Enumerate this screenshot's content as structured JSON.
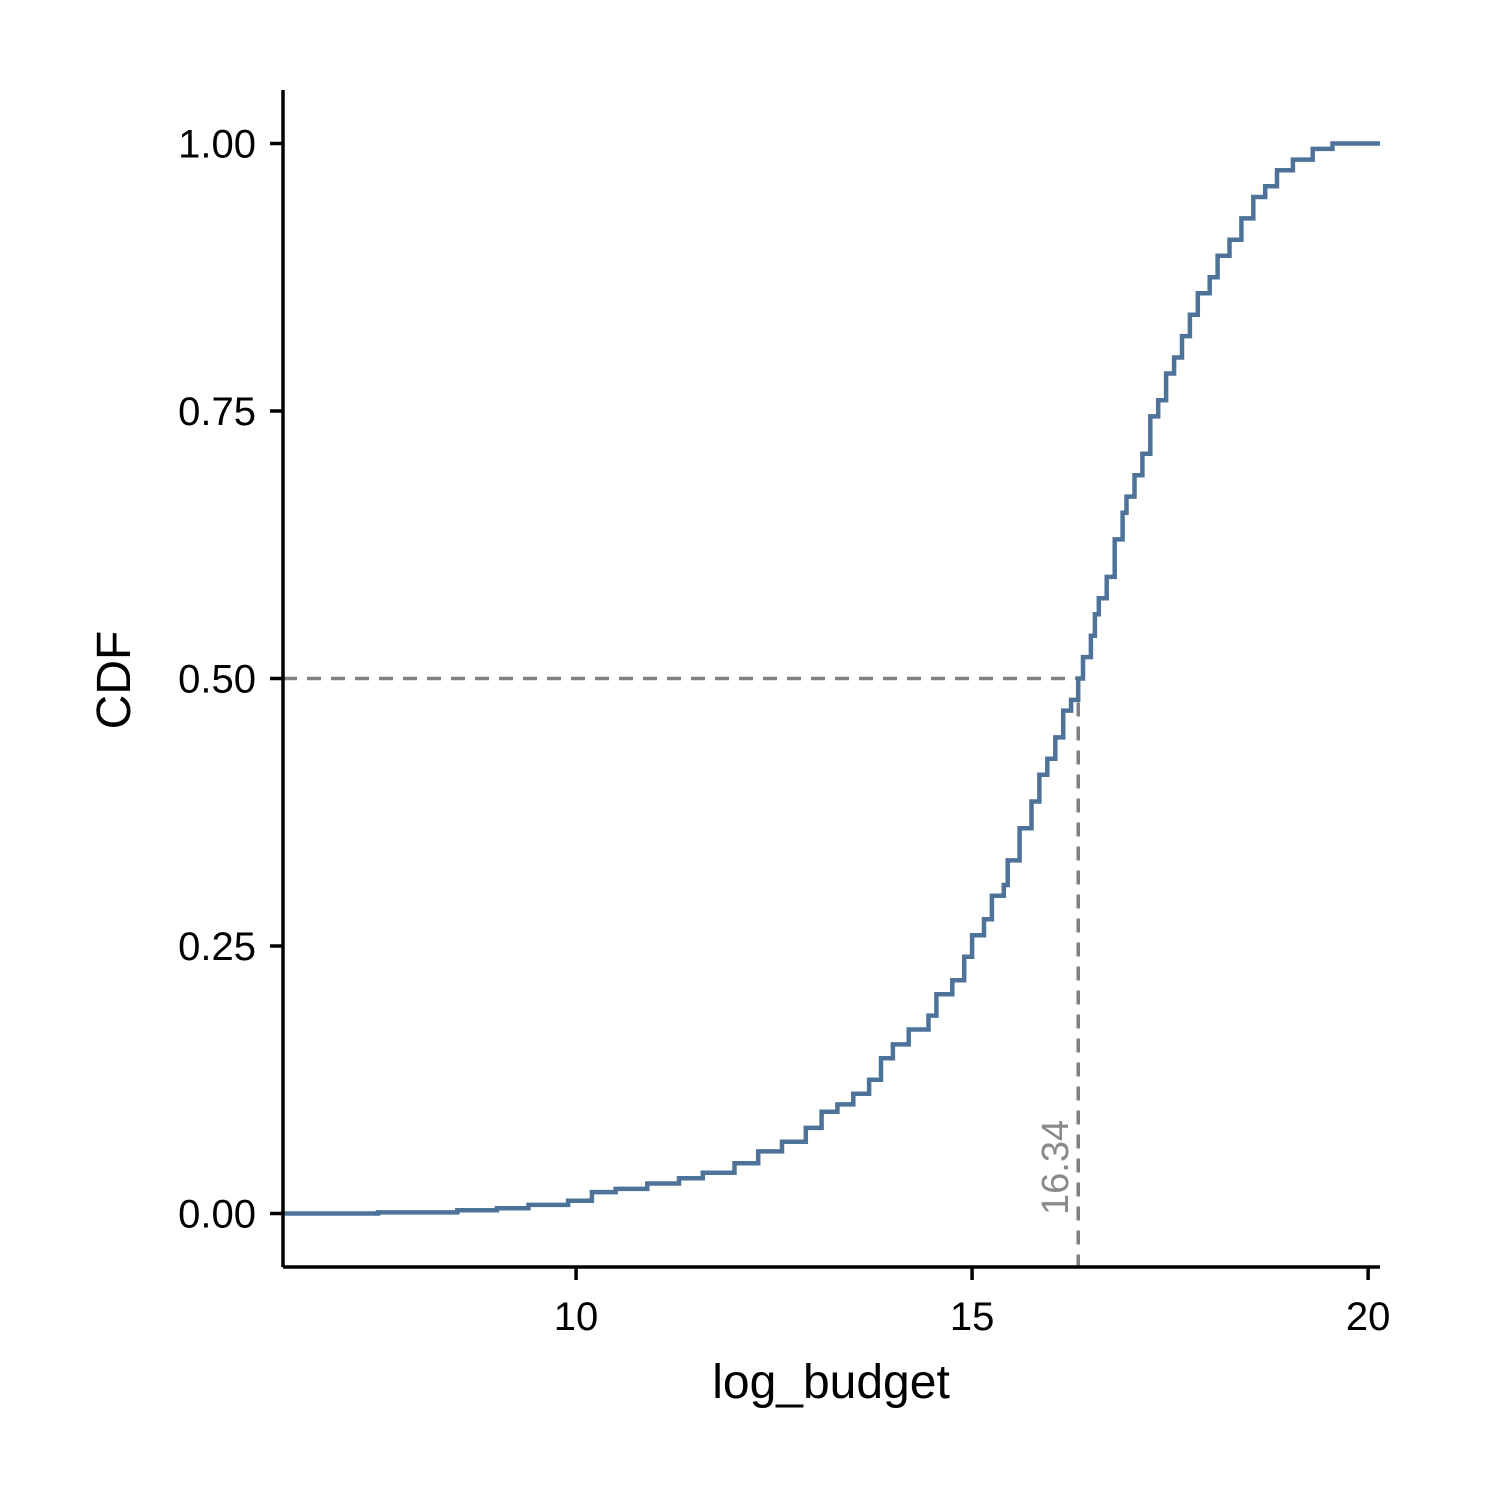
{
  "chart_data": {
    "type": "line",
    "title": "",
    "xlabel": "log_budget",
    "ylabel": "CDF",
    "xlim": [
      6.3,
      20.15
    ],
    "ylim": [
      -0.05,
      1.05
    ],
    "xticks": [
      {
        "value": 10,
        "label": "10"
      },
      {
        "value": 15,
        "label": "15"
      },
      {
        "value": 20,
        "label": "20"
      }
    ],
    "yticks": [
      {
        "value": 0,
        "label": "0.00"
      },
      {
        "value": 0.25,
        "label": "0.25"
      },
      {
        "value": 0.5,
        "label": "0.50"
      },
      {
        "value": 0.75,
        "label": "0.75"
      },
      {
        "value": 1,
        "label": "1.00"
      }
    ],
    "grid": false,
    "legend": "none",
    "series": [
      {
        "color": "#4e739b",
        "step": true,
        "points": [
          [
            6.3,
            0.0
          ],
          [
            7.5,
            0.001
          ],
          [
            8.5,
            0.003
          ],
          [
            9.0,
            0.005
          ],
          [
            9.4,
            0.008
          ],
          [
            9.9,
            0.012
          ],
          [
            10.2,
            0.02
          ],
          [
            10.5,
            0.023
          ],
          [
            10.9,
            0.028
          ],
          [
            11.3,
            0.033
          ],
          [
            11.6,
            0.038
          ],
          [
            12.0,
            0.047
          ],
          [
            12.3,
            0.058
          ],
          [
            12.6,
            0.067
          ],
          [
            12.9,
            0.08
          ],
          [
            13.1,
            0.095
          ],
          [
            13.3,
            0.102
          ],
          [
            13.5,
            0.112
          ],
          [
            13.7,
            0.125
          ],
          [
            13.85,
            0.145
          ],
          [
            14.0,
            0.158
          ],
          [
            14.2,
            0.172
          ],
          [
            14.45,
            0.185
          ],
          [
            14.55,
            0.205
          ],
          [
            14.75,
            0.218
          ],
          [
            14.9,
            0.24
          ],
          [
            15.0,
            0.26
          ],
          [
            15.15,
            0.275
          ],
          [
            15.25,
            0.297
          ],
          [
            15.4,
            0.307
          ],
          [
            15.45,
            0.33
          ],
          [
            15.6,
            0.36
          ],
          [
            15.75,
            0.385
          ],
          [
            15.85,
            0.41
          ],
          [
            15.95,
            0.425
          ],
          [
            16.05,
            0.445
          ],
          [
            16.15,
            0.47
          ],
          [
            16.25,
            0.48
          ],
          [
            16.34,
            0.5
          ],
          [
            16.4,
            0.52
          ],
          [
            16.5,
            0.54
          ],
          [
            16.55,
            0.56
          ],
          [
            16.6,
            0.575
          ],
          [
            16.7,
            0.595
          ],
          [
            16.8,
            0.63
          ],
          [
            16.9,
            0.655
          ],
          [
            16.95,
            0.67
          ],
          [
            17.05,
            0.69
          ],
          [
            17.15,
            0.71
          ],
          [
            17.25,
            0.745
          ],
          [
            17.35,
            0.76
          ],
          [
            17.45,
            0.785
          ],
          [
            17.55,
            0.8
          ],
          [
            17.65,
            0.82
          ],
          [
            17.75,
            0.84
          ],
          [
            17.85,
            0.86
          ],
          [
            18.0,
            0.875
          ],
          [
            18.1,
            0.895
          ],
          [
            18.25,
            0.91
          ],
          [
            18.4,
            0.93
          ],
          [
            18.55,
            0.95
          ],
          [
            18.7,
            0.96
          ],
          [
            18.85,
            0.975
          ],
          [
            19.05,
            0.985
          ],
          [
            19.3,
            0.995
          ],
          [
            19.55,
            1.0
          ],
          [
            20.15,
            1.0
          ]
        ]
      }
    ],
    "reference": {
      "x": 16.34,
      "y": 0.5,
      "label": "16.34",
      "color": "#808080"
    }
  }
}
